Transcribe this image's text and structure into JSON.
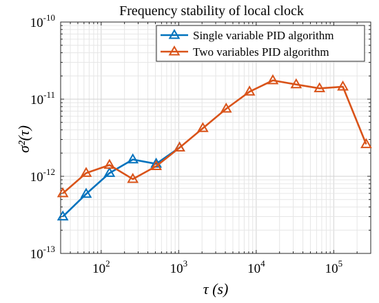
{
  "chart_data": {
    "type": "line",
    "title": "Frequency stability of local clock",
    "xlabel": "τ (s)",
    "ylabel": "σ²(τ)",
    "x_scale": "log",
    "y_scale": "log",
    "xlim": [
      30,
      300000
    ],
    "ylim": [
      1e-13,
      1e-10
    ],
    "grid": true,
    "legend_position": "top-right",
    "x_ticks": [
      {
        "value": 100,
        "base": "10",
        "exp": "2"
      },
      {
        "value": 1000,
        "base": "10",
        "exp": "3"
      },
      {
        "value": 10000,
        "base": "10",
        "exp": "4"
      },
      {
        "value": 100000,
        "base": "10",
        "exp": "5"
      }
    ],
    "y_ticks": [
      {
        "value": 1e-13,
        "base": "10",
        "exp": "-13"
      },
      {
        "value": 1e-12,
        "base": "10",
        "exp": "-12"
      },
      {
        "value": 1e-11,
        "base": "10",
        "exp": "-11"
      },
      {
        "value": 1e-10,
        "base": "10",
        "exp": "-10"
      }
    ],
    "series": [
      {
        "name": "Single variable PID algorithm",
        "color": "#0072BD",
        "marker": "triangle",
        "x": [
          32,
          64,
          128,
          256,
          512,
          1024
        ],
        "y": [
          3e-13,
          5.9e-13,
          1.1e-12,
          1.65e-12,
          1.45e-12,
          2.35e-12
        ]
      },
      {
        "name": "Two variables PID algorithm",
        "color": "#D95319",
        "marker": "triangle",
        "x": [
          32,
          64,
          128,
          256,
          512,
          1024,
          2048,
          4096,
          8192,
          16384,
          32768,
          65536,
          131072,
          262144
        ],
        "y": [
          6e-13,
          1.1e-12,
          1.4e-12,
          9.2e-13,
          1.35e-12,
          2.35e-12,
          4.2e-12,
          7.5e-12,
          1.25e-11,
          1.75e-11,
          1.55e-11,
          1.38e-11,
          1.45e-11,
          2.6e-12
        ]
      }
    ]
  }
}
